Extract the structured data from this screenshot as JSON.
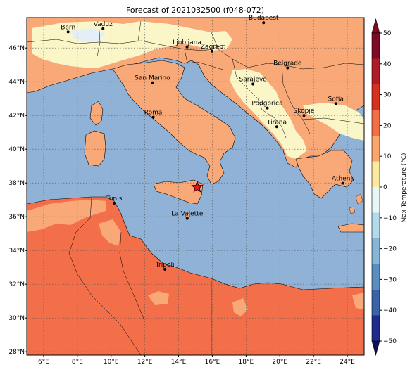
{
  "title": "Forecast of 2021032500 (f048-072)",
  "lat_ticks": [
    "28°N",
    "30°N",
    "32°N",
    "34°N",
    "36°N",
    "38°N",
    "40°N",
    "42°N",
    "44°N",
    "46°N"
  ],
  "lon_ticks": [
    "6°E",
    "8°E",
    "10°E",
    "12°E",
    "14°E",
    "16°E",
    "18°E",
    "20°E",
    "22°E",
    "24°E"
  ],
  "cities": [
    {
      "name": "Bern",
      "lon": 7.45,
      "lat": 46.95
    },
    {
      "name": "Vaduz",
      "lon": 9.52,
      "lat": 47.14
    },
    {
      "name": "Budapest",
      "lon": 19.04,
      "lat": 47.5
    },
    {
      "name": "Ljubljana",
      "lon": 14.5,
      "lat": 46.06
    },
    {
      "name": "Zagreb",
      "lon": 15.98,
      "lat": 45.81
    },
    {
      "name": "Belgrade",
      "lon": 20.46,
      "lat": 44.82
    },
    {
      "name": "San Marino",
      "lon": 12.45,
      "lat": 43.94
    },
    {
      "name": "Sarajevo",
      "lon": 18.41,
      "lat": 43.86
    },
    {
      "name": "Sofia",
      "lon": 23.32,
      "lat": 42.7
    },
    {
      "name": "Podgorica",
      "lon": 19.26,
      "lat": 42.44
    },
    {
      "name": "Skopje",
      "lon": 21.43,
      "lat": 42.0
    },
    {
      "name": "Roma",
      "lon": 12.5,
      "lat": 41.9
    },
    {
      "name": "Tirana",
      "lon": 19.82,
      "lat": 41.33
    },
    {
      "name": "Athens",
      "lon": 23.73,
      "lat": 37.98
    },
    {
      "name": "Tunis",
      "lon": 10.18,
      "lat": 36.8
    },
    {
      "name": "La Valette",
      "lon": 14.51,
      "lat": 35.9
    },
    {
      "name": "Tripoli",
      "lon": 13.19,
      "lat": 32.89
    }
  ],
  "marker": {
    "name": "star-marker",
    "lon": 15.1,
    "lat": 37.75,
    "color": "#e8131c"
  },
  "colorbar": {
    "label": "Max Temperature (°C)",
    "ticks": [
      "50",
      "40",
      "30",
      "20",
      "10",
      "0",
      "−10",
      "−20",
      "−30",
      "−40",
      "−50"
    ],
    "colors": [
      "#7f0a25",
      "#b01c26",
      "#d7301f",
      "#f46d43",
      "#fca56b",
      "#fde8a0",
      "#e8f6f8",
      "#b3daea",
      "#87b5d6",
      "#5b8ec0",
      "#3a63aa",
      "#202c8c"
    ]
  },
  "colors": {
    "sea": "#90b2d7",
    "land_cool": "#fbf6c8",
    "land_mild": "#f9a978",
    "land_warm": "#f36f4a",
    "pale": "#e3eef6"
  }
}
